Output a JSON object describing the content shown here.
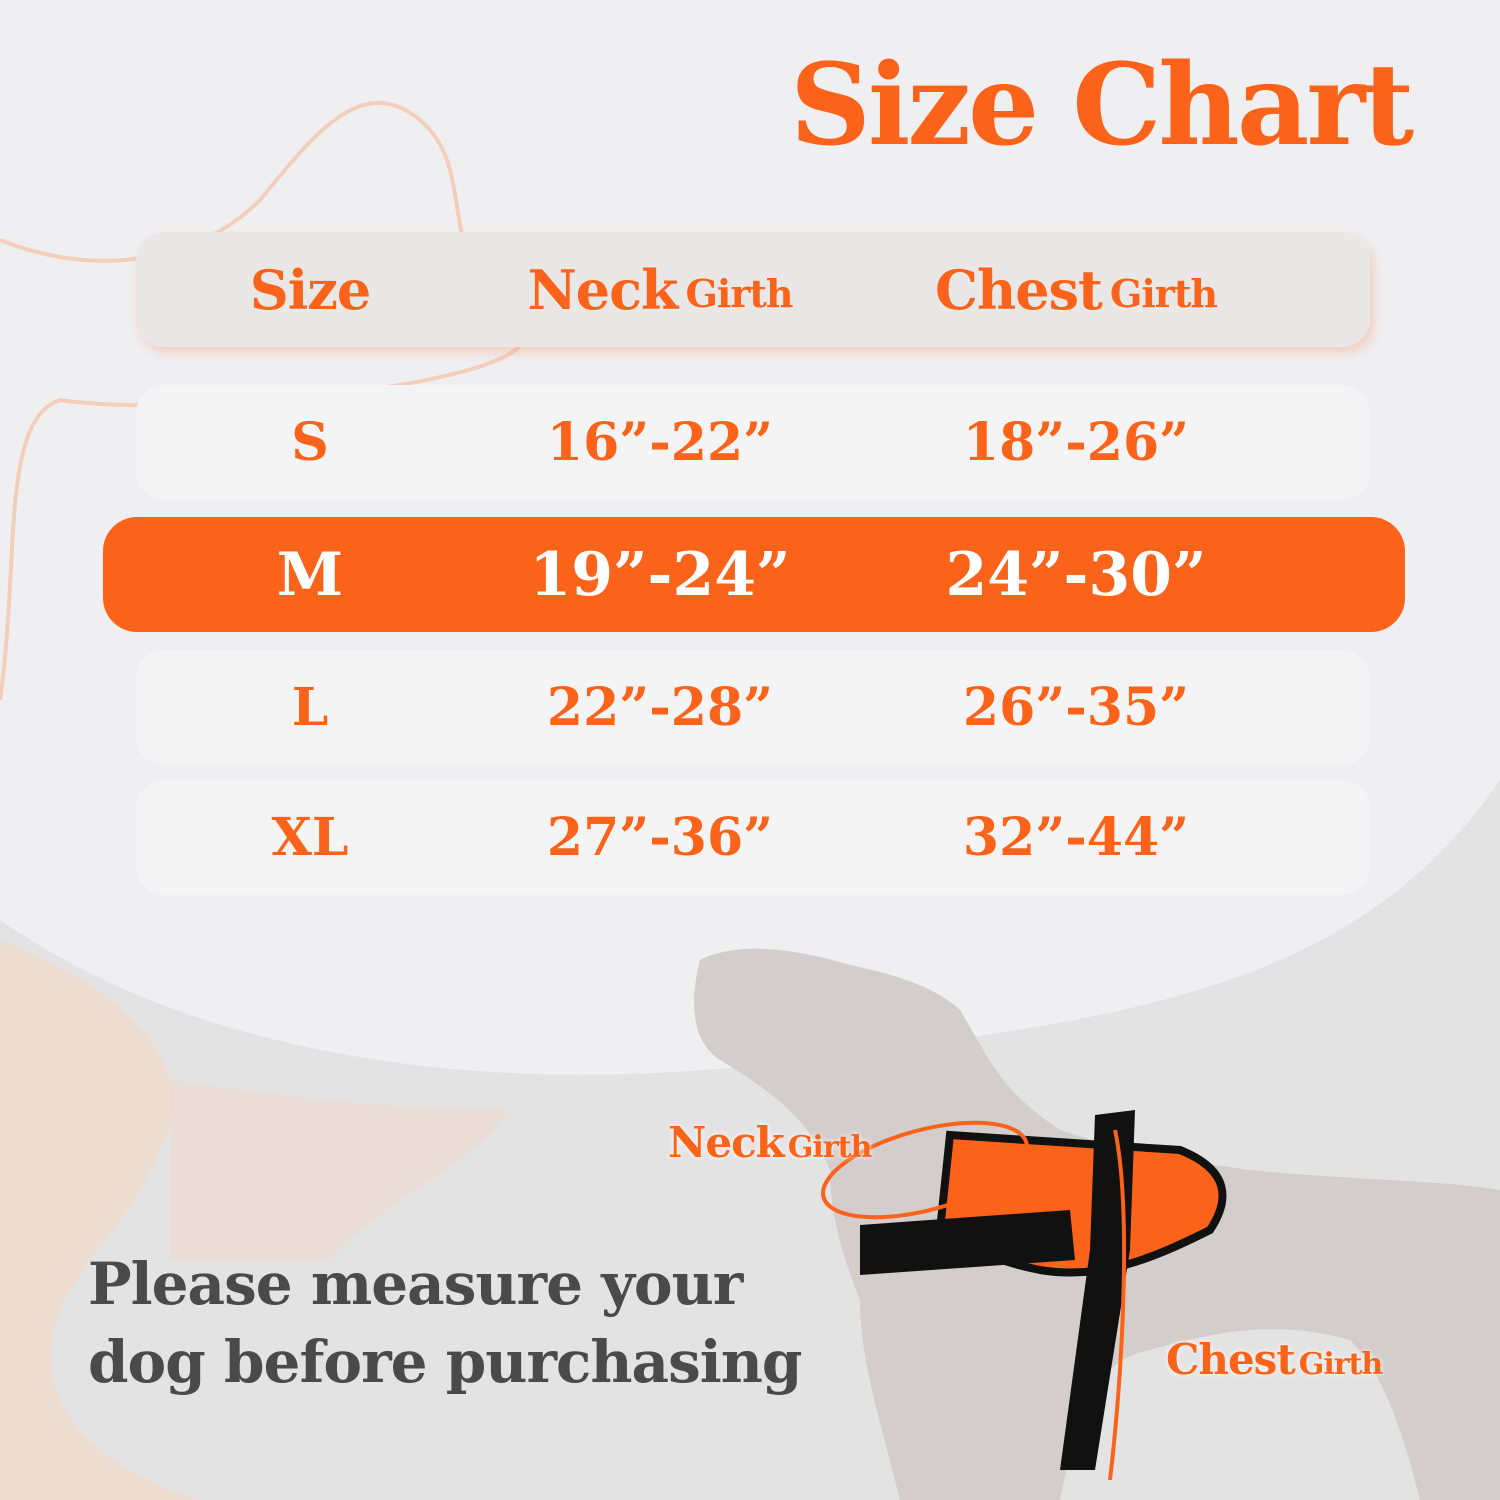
{
  "title": "Size Chart",
  "colors": {
    "accent": "#fa6319",
    "text_dark": "#4a4a4a",
    "row_bg": "#f4f4f5"
  },
  "table": {
    "headers": [
      {
        "main": "Size",
        "sub": ""
      },
      {
        "main": "Neck",
        "sub": "Girth"
      },
      {
        "main": "Chest",
        "sub": "Girth"
      }
    ],
    "highlighted_row": "M",
    "rows": [
      {
        "size": "S",
        "neck": "16”-22”",
        "chest": "18”-26”"
      },
      {
        "size": "M",
        "neck": "19”-24”",
        "chest": "24”-30”"
      },
      {
        "size": "L",
        "neck": "22”-28”",
        "chest": "26”-35”"
      },
      {
        "size": "XL",
        "neck": "27”-36”",
        "chest": "32”-44”"
      }
    ]
  },
  "illustration": {
    "neck_label": "Neck",
    "neck_sub": "Girth",
    "chest_label": "Chest",
    "chest_sub": "Girth"
  },
  "note": {
    "line1": "Please measure your",
    "line2": "dog before purchasing"
  }
}
